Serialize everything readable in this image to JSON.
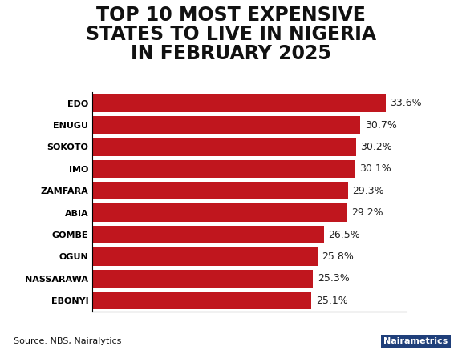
{
  "chart_data": {
    "type": "bar",
    "orientation": "horizontal",
    "title": "TOP 10 MOST EXPENSIVE\nSTATES TO LIVE IN NIGERIA\nIN FEBRUARY 2025",
    "categories": [
      "EDO",
      "ENUGU",
      "SOKOTO",
      "IMO",
      "ZAMFARA",
      "ABIA",
      "GOMBE",
      "OGUN",
      "NASSARAWA",
      "EBONYI"
    ],
    "values": [
      33.6,
      30.7,
      30.2,
      30.1,
      29.3,
      29.2,
      26.5,
      25.8,
      25.3,
      25.1
    ],
    "value_labels": [
      "33.6%",
      "30.7%",
      "30.2%",
      "30.1%",
      "29.3%",
      "29.2%",
      "26.5%",
      "25.8%",
      "25.3%",
      "25.1%"
    ],
    "color": "#c0161e",
    "xlim": [
      0,
      36
    ],
    "grid": false,
    "data_labels": true,
    "tick_labels": "y",
    "source": "Source: NBS, Nairalytics",
    "brand": "Nairametrics"
  }
}
